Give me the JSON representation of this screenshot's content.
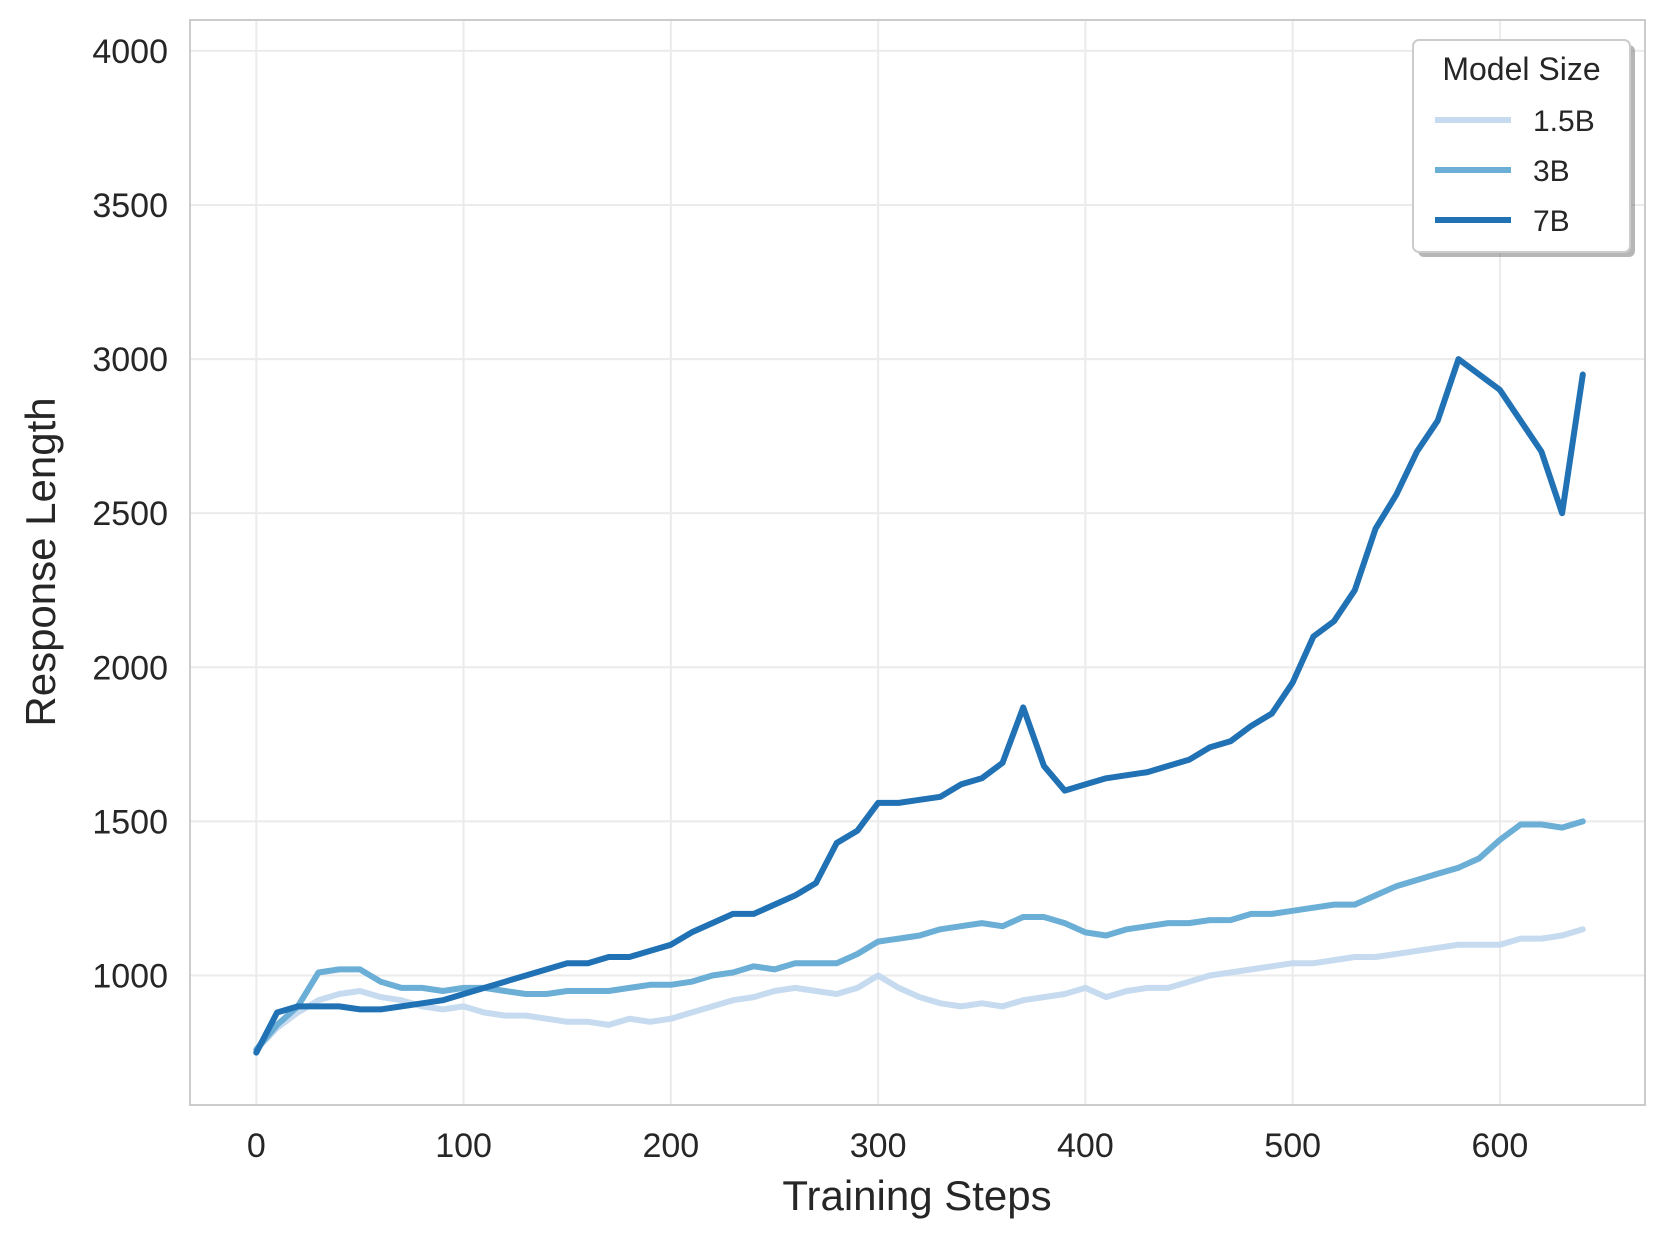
{
  "chart_data": {
    "type": "line",
    "xlabel": "Training Steps",
    "ylabel": "Response Length",
    "xlim": [
      -32,
      670
    ],
    "ylim": [
      580,
      4100
    ],
    "xticks": [
      0,
      100,
      200,
      300,
      400,
      500,
      600
    ],
    "yticks": [
      1000,
      1500,
      2000,
      2500,
      3000,
      3500,
      4000
    ],
    "grid": true,
    "legend": {
      "title": "Model Size",
      "position": "top-right"
    },
    "series": [
      {
        "name": "1.5B",
        "color": "#c6dbef",
        "x": [
          0,
          10,
          20,
          30,
          40,
          50,
          60,
          70,
          80,
          90,
          100,
          110,
          120,
          130,
          140,
          150,
          160,
          170,
          180,
          190,
          200,
          210,
          220,
          230,
          240,
          250,
          260,
          270,
          280,
          290,
          300,
          310,
          320,
          330,
          340,
          350,
          360,
          370,
          380,
          390,
          400,
          410,
          420,
          430,
          440,
          450,
          460,
          470,
          480,
          490,
          500,
          510,
          520,
          530,
          540,
          550,
          560,
          570,
          580,
          590,
          600,
          610,
          620,
          630,
          640
        ],
        "y": [
          760,
          830,
          880,
          920,
          940,
          950,
          930,
          920,
          900,
          890,
          900,
          880,
          870,
          870,
          860,
          850,
          850,
          840,
          860,
          850,
          860,
          880,
          900,
          920,
          930,
          950,
          960,
          950,
          940,
          960,
          1000,
          960,
          930,
          910,
          900,
          910,
          900,
          920,
          930,
          940,
          960,
          930,
          950,
          960,
          960,
          980,
          1000,
          1010,
          1020,
          1030,
          1040,
          1040,
          1050,
          1060,
          1060,
          1070,
          1080,
          1090,
          1100,
          1100,
          1100,
          1120,
          1120,
          1130,
          1150
        ]
      },
      {
        "name": "3B",
        "color": "#6baed6",
        "x": [
          0,
          10,
          20,
          30,
          40,
          50,
          60,
          70,
          80,
          90,
          100,
          110,
          120,
          130,
          140,
          150,
          160,
          170,
          180,
          190,
          200,
          210,
          220,
          230,
          240,
          250,
          260,
          270,
          280,
          290,
          300,
          310,
          320,
          330,
          340,
          350,
          360,
          370,
          380,
          390,
          400,
          410,
          420,
          430,
          440,
          450,
          460,
          470,
          480,
          490,
          500,
          510,
          520,
          530,
          540,
          550,
          560,
          570,
          580,
          590,
          600,
          610,
          620,
          630,
          640
        ],
        "y": [
          760,
          840,
          900,
          1010,
          1020,
          1020,
          980,
          960,
          960,
          950,
          960,
          960,
          950,
          940,
          940,
          950,
          950,
          950,
          960,
          970,
          970,
          980,
          1000,
          1010,
          1030,
          1020,
          1040,
          1040,
          1040,
          1070,
          1110,
          1120,
          1130,
          1150,
          1160,
          1170,
          1160,
          1190,
          1190,
          1170,
          1140,
          1130,
          1150,
          1160,
          1170,
          1170,
          1180,
          1180,
          1200,
          1200,
          1210,
          1220,
          1230,
          1230,
          1260,
          1290,
          1310,
          1330,
          1350,
          1380,
          1440,
          1490,
          1490,
          1480,
          1500
        ]
      },
      {
        "name": "7B",
        "color": "#2171b5",
        "x": [
          0,
          10,
          20,
          30,
          40,
          50,
          60,
          70,
          80,
          90,
          100,
          110,
          120,
          130,
          140,
          150,
          160,
          170,
          180,
          190,
          200,
          210,
          220,
          230,
          240,
          250,
          260,
          270,
          280,
          290,
          300,
          310,
          320,
          330,
          340,
          350,
          360,
          370,
          380,
          390,
          400,
          410,
          420,
          430,
          440,
          450,
          460,
          470,
          480,
          490,
          500,
          510,
          520,
          530,
          540,
          550,
          560,
          570,
          580,
          590,
          600,
          610,
          620,
          630,
          640
        ],
        "y": [
          750,
          880,
          900,
          900,
          900,
          890,
          890,
          900,
          910,
          920,
          940,
          960,
          980,
          1000,
          1020,
          1040,
          1040,
          1060,
          1060,
          1080,
          1100,
          1140,
          1170,
          1200,
          1200,
          1230,
          1260,
          1300,
          1430,
          1470,
          1560,
          1560,
          1570,
          1580,
          1620,
          1640,
          1690,
          1870,
          1680,
          1600,
          1620,
          1640,
          1650,
          1660,
          1680,
          1700,
          1740,
          1760,
          1810,
          1850,
          1950,
          2100,
          2150,
          2250,
          2450,
          2560,
          2700,
          2800,
          3000,
          2950,
          2900,
          2800,
          2700,
          2500,
          2950
        ]
      }
    ]
  }
}
